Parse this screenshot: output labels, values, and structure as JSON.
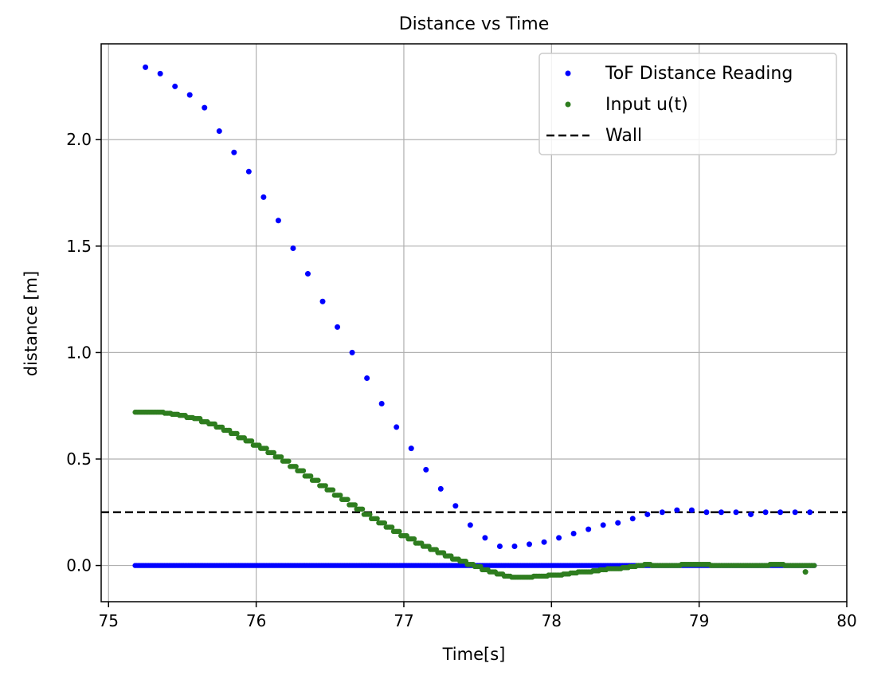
{
  "chart_data": {
    "type": "scatter",
    "title": "Distance vs Time",
    "xlabel": "Time[s]",
    "ylabel": "distance [m]",
    "xlim": [
      74.95,
      80.0
    ],
    "ylim": [
      -0.17,
      2.45
    ],
    "xticks": [
      75,
      76,
      77,
      78,
      79,
      80
    ],
    "yticks": [
      0.0,
      0.5,
      1.0,
      1.5,
      2.0
    ],
    "xtick_labels": [
      "75",
      "76",
      "77",
      "78",
      "79",
      "80"
    ],
    "ytick_labels": [
      "0.0",
      "0.5",
      "1.0",
      "1.5",
      "2.0"
    ],
    "grid": true,
    "legend_position": "upper right",
    "series": [
      {
        "name": "ToF Distance Reading",
        "kind": "scatter",
        "color": "#0000ff",
        "points": [
          [
            75.25,
            2.34
          ],
          [
            75.35,
            2.31
          ],
          [
            75.45,
            2.25
          ],
          [
            75.55,
            2.21
          ],
          [
            75.65,
            2.15
          ],
          [
            75.75,
            2.04
          ],
          [
            75.85,
            1.94
          ],
          [
            75.95,
            1.85
          ],
          [
            76.05,
            1.73
          ],
          [
            76.15,
            1.62
          ],
          [
            76.25,
            1.49
          ],
          [
            76.35,
            1.37
          ],
          [
            76.45,
            1.24
          ],
          [
            76.55,
            1.12
          ],
          [
            76.65,
            1.0
          ],
          [
            76.75,
            0.88
          ],
          [
            76.85,
            0.76
          ],
          [
            76.95,
            0.65
          ],
          [
            77.05,
            0.55
          ],
          [
            77.15,
            0.45
          ],
          [
            77.25,
            0.36
          ],
          [
            77.35,
            0.28
          ],
          [
            77.45,
            0.19
          ],
          [
            77.55,
            0.13
          ],
          [
            77.65,
            0.09
          ],
          [
            77.75,
            0.09
          ],
          [
            77.85,
            0.1
          ],
          [
            77.95,
            0.11
          ],
          [
            78.05,
            0.13
          ],
          [
            78.15,
            0.15
          ],
          [
            78.25,
            0.17
          ],
          [
            78.35,
            0.19
          ],
          [
            78.45,
            0.2
          ],
          [
            78.55,
            0.22
          ],
          [
            78.65,
            0.24
          ],
          [
            78.75,
            0.25
          ],
          [
            78.85,
            0.26
          ],
          [
            78.95,
            0.26
          ],
          [
            79.05,
            0.25
          ],
          [
            79.15,
            0.25
          ],
          [
            79.25,
            0.25
          ],
          [
            79.35,
            0.24
          ],
          [
            79.45,
            0.25
          ],
          [
            79.55,
            0.25
          ],
          [
            79.65,
            0.25
          ],
          [
            79.75,
            0.25
          ]
        ],
        "baseline_run": {
          "x_start": 75.18,
          "x_end": 79.78,
          "y": 0.0
        }
      },
      {
        "name": "Input u(t)",
        "kind": "scatter",
        "color": "#2e7d1f",
        "curve": [
          [
            75.18,
            0.72
          ],
          [
            75.3,
            0.72
          ],
          [
            75.4,
            0.715
          ],
          [
            75.5,
            0.7
          ],
          [
            75.6,
            0.685
          ],
          [
            75.7,
            0.66
          ],
          [
            75.8,
            0.63
          ],
          [
            75.9,
            0.595
          ],
          [
            76.0,
            0.56
          ],
          [
            76.1,
            0.52
          ],
          [
            76.2,
            0.48
          ],
          [
            76.3,
            0.435
          ],
          [
            76.4,
            0.39
          ],
          [
            76.5,
            0.345
          ],
          [
            76.6,
            0.3
          ],
          [
            76.7,
            0.255
          ],
          [
            76.8,
            0.21
          ],
          [
            76.9,
            0.17
          ],
          [
            77.0,
            0.135
          ],
          [
            77.1,
            0.1
          ],
          [
            77.2,
            0.07
          ],
          [
            77.3,
            0.04
          ],
          [
            77.4,
            0.015
          ],
          [
            77.5,
            -0.01
          ],
          [
            77.6,
            -0.035
          ],
          [
            77.7,
            -0.055
          ],
          [
            77.8,
            -0.055
          ],
          [
            77.9,
            -0.05
          ],
          [
            78.0,
            -0.045
          ],
          [
            78.1,
            -0.04
          ],
          [
            78.2,
            -0.03
          ],
          [
            78.3,
            -0.025
          ],
          [
            78.4,
            -0.015
          ],
          [
            78.5,
            -0.01
          ],
          [
            78.6,
            0.005
          ],
          [
            78.7,
            0.0
          ],
          [
            78.8,
            0.0
          ],
          [
            78.9,
            0.005
          ],
          [
            79.0,
            0.005
          ],
          [
            79.1,
            0.0
          ],
          [
            79.2,
            0.0
          ],
          [
            79.3,
            0.0
          ],
          [
            79.4,
            0.0
          ],
          [
            79.5,
            0.005
          ],
          [
            79.6,
            0.0
          ],
          [
            79.7,
            0.0
          ],
          [
            79.78,
            0.0
          ]
        ],
        "outliers": [
          [
            79.72,
            -0.03
          ]
        ]
      },
      {
        "name": "Wall",
        "kind": "line",
        "style": "dashed",
        "color": "#000000",
        "y": 0.25
      }
    ]
  }
}
